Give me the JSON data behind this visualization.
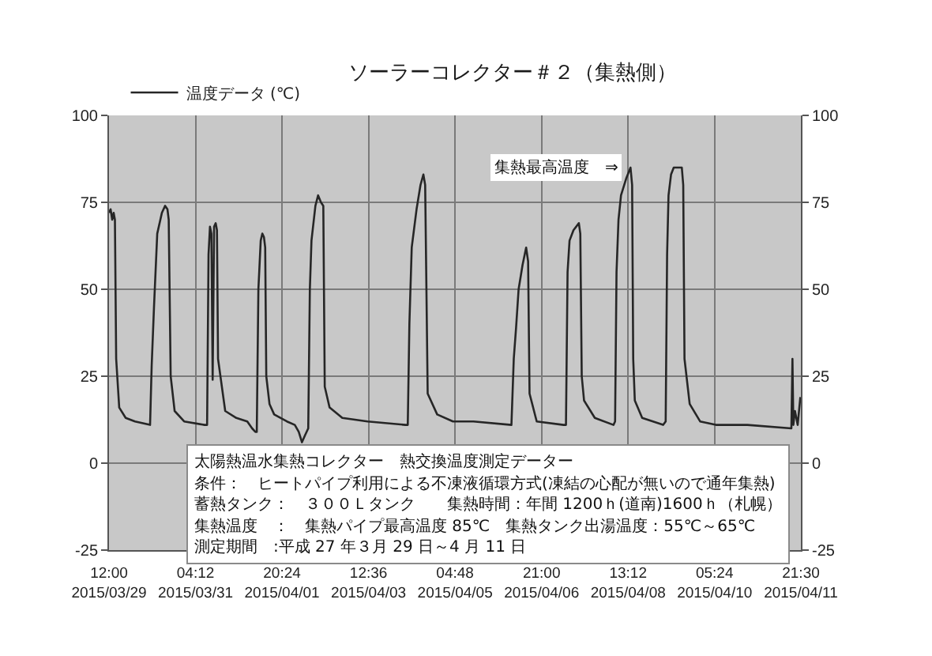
{
  "chart_data": {
    "type": "line",
    "title": "ソーラーコレクター＃２（集熱側）",
    "x": [
      "2015-03-29T12:00",
      "2015-03-29T12:45",
      "2015-03-29T13:30",
      "2015-03-29T14:10",
      "2015-03-29T14:45",
      "2015-03-29T15:20",
      "2015-03-29T16:45",
      "2015-03-29T19:45",
      "2015-03-30T00:05",
      "2015-03-30T07:05",
      "2015-03-30T07:50",
      "2015-03-30T08:55",
      "2015-03-30T10:25",
      "2015-03-30T12:35",
      "2015-03-30T14:05",
      "2015-03-30T15:10",
      "2015-03-30T15:45",
      "2015-03-30T16:40",
      "2015-03-30T18:30",
      "2015-03-30T22:55",
      "2015-03-31T08:25",
      "2015-03-31T09:35",
      "2015-03-31T10:15",
      "2015-03-31T10:55",
      "2015-03-31T11:35",
      "2015-03-31T12:10",
      "2015-03-31T12:50",
      "2015-03-31T13:35",
      "2015-03-31T14:10",
      "2015-03-31T14:40",
      "2015-03-31T18:00",
      "2015-03-31T23:10",
      "2015-04-01T04:15",
      "2015-04-01T06:30",
      "2015-04-01T08:00",
      "2015-04-01T08:40",
      "2015-04-01T09:25",
      "2015-04-01T10:30",
      "2015-04-01T11:15",
      "2015-04-01T12:00",
      "2015-04-01T12:35",
      "2015-04-01T13:05",
      "2015-04-01T14:35",
      "2015-04-01T16:45",
      "2015-04-01T22:40",
      "2015-04-02T02:20",
      "2015-04-02T04:10",
      "2015-04-02T05:40",
      "2015-04-02T07:05",
      "2015-04-02T08:35",
      "2015-04-02T09:20",
      "2015-04-02T10:05",
      "2015-04-02T11:55",
      "2015-04-02T13:10",
      "2015-04-02T14:30",
      "2015-04-02T15:35",
      "2015-04-02T16:15",
      "2015-04-02T18:30",
      "2015-04-03T00:25",
      "2015-04-03T12:10",
      "2015-04-04T05:45",
      "2015-04-04T06:50",
      "2015-04-04T07:35",
      "2015-04-04T08:40",
      "2015-04-04T10:55",
      "2015-04-04T12:45",
      "2015-04-04T14:05",
      "2015-04-04T14:55",
      "2015-04-04T15:30",
      "2015-04-04T16:05",
      "2015-04-04T20:30",
      "2015-04-05T03:50",
      "2015-04-05T13:20",
      "2015-04-06T07:00",
      "2015-04-06T08:05",
      "2015-04-06T09:10",
      "2015-04-06T10:20",
      "2015-04-06T12:10",
      "2015-04-06T13:50",
      "2015-04-06T14:45",
      "2015-04-06T15:25",
      "2015-04-06T18:45",
      "2015-04-07T07:15",
      "2015-04-07T08:20",
      "2015-04-07T09:05",
      "2015-04-07T10:00",
      "2015-04-07T11:50",
      "2015-04-07T14:20",
      "2015-04-07T15:00",
      "2015-04-07T15:40",
      "2015-04-07T16:45",
      "2015-04-07T21:45",
      "2015-04-08T06:25",
      "2015-04-08T07:10",
      "2015-04-08T07:50",
      "2015-04-08T08:45",
      "2015-04-08T09:55",
      "2015-04-08T12:25",
      "2015-04-08T14:20",
      "2015-04-08T15:05",
      "2015-04-08T15:35",
      "2015-04-08T16:20",
      "2015-04-08T19:45",
      "2015-04-09T05:30",
      "2015-04-09T06:40",
      "2015-04-09T07:20",
      "2015-04-09T08:00",
      "2015-04-09T09:10",
      "2015-04-09T10:25",
      "2015-04-09T14:10",
      "2015-04-09T14:50",
      "2015-04-09T15:25",
      "2015-04-09T17:50",
      "2015-04-09T22:40",
      "2015-04-10T06:00",
      "2015-04-10T20:40",
      "2015-04-11T17:05",
      "2015-04-11T17:35",
      "2015-04-11T18:00",
      "2015-04-11T18:45",
      "2015-04-11T20:00",
      "2015-04-11T21:15"
    ],
    "series": [
      {
        "name": "温度データ (℃)",
        "color": "#262626",
        "values": [
          72,
          73,
          70,
          72,
          70,
          30,
          16,
          13,
          12,
          11,
          28,
          45,
          66,
          72,
          74,
          73,
          70,
          25,
          15,
          12,
          11,
          11,
          60,
          68,
          66,
          24,
          68,
          69,
          67,
          30,
          15,
          13,
          12,
          10,
          9,
          9,
          50,
          64,
          66,
          65,
          62,
          25,
          17,
          14,
          12,
          11,
          9,
          6,
          8,
          10,
          50,
          64,
          74,
          77,
          75,
          74,
          22,
          16,
          13,
          12,
          11,
          11,
          40,
          62,
          73,
          80,
          83,
          80,
          50,
          20,
          14,
          12,
          12,
          11,
          30,
          39,
          50,
          57,
          62,
          58,
          20,
          12,
          11,
          11,
          55,
          64,
          67,
          69,
          66,
          25,
          18,
          13,
          11,
          12,
          55,
          70,
          77,
          82,
          85,
          80,
          30,
          18,
          13,
          11,
          12,
          60,
          77,
          83,
          85,
          85,
          80,
          30,
          17,
          12,
          11,
          11,
          10,
          30,
          11,
          15,
          11,
          19
        ]
      }
    ],
    "xlim": [
      "2015-03-29T12:00",
      "2015-04-11T21:30"
    ],
    "xticks": [
      {
        "value": "2015-03-29T12:00",
        "label": "12:00\n2015/03/29"
      },
      {
        "value": "2015-03-31T04:12",
        "label": "04:12\n2015/03/31"
      },
      {
        "value": "2015-04-01T20:24",
        "label": "20:24\n2015/04/01"
      },
      {
        "value": "2015-04-03T12:36",
        "label": "12:36\n2015/04/03"
      },
      {
        "value": "2015-04-05T04:48",
        "label": "04:48\n2015/04/05"
      },
      {
        "value": "2015-04-06T21:00",
        "label": "21:00\n2015/04/06"
      },
      {
        "value": "2015-04-08T13:12",
        "label": "13:12\n2015/04/08"
      },
      {
        "value": "2015-04-10T05:24",
        "label": "05:24\n2015/04/10"
      },
      {
        "value": "2015-04-11T21:30",
        "label": "21:30\n2015/04/11"
      }
    ],
    "ylim": [
      -25,
      100
    ],
    "yticks": [
      -25,
      0,
      25,
      50,
      75,
      100
    ],
    "y2lim": [
      -25,
      100
    ],
    "y2ticks": [
      -25,
      0,
      25,
      50,
      75,
      100
    ],
    "grid": true,
    "legend": "top left",
    "annotations": [
      {
        "text": "集熱最高温度　⇒",
        "x": "2015-04-08T14:20",
        "y": 85
      },
      "太陽熱温水集熱コレクター　熱交換温度測定データー",
      "条件：　ヒートパイプ利用による不凍液循環方式(凍結の心配が無いので通年集熱)",
      "蓄熱タンク：　３００Ｌタンク　　集熱時間：年間 1200ｈ(道南)1600ｈ（札幌）",
      "集熱温度　：　集熱パイプ最高温度 85℃　集熱タンク出湯温度：55℃～65℃",
      "測定期間　:平成 27 年３月 29 日～4 月 11 日"
    ]
  }
}
